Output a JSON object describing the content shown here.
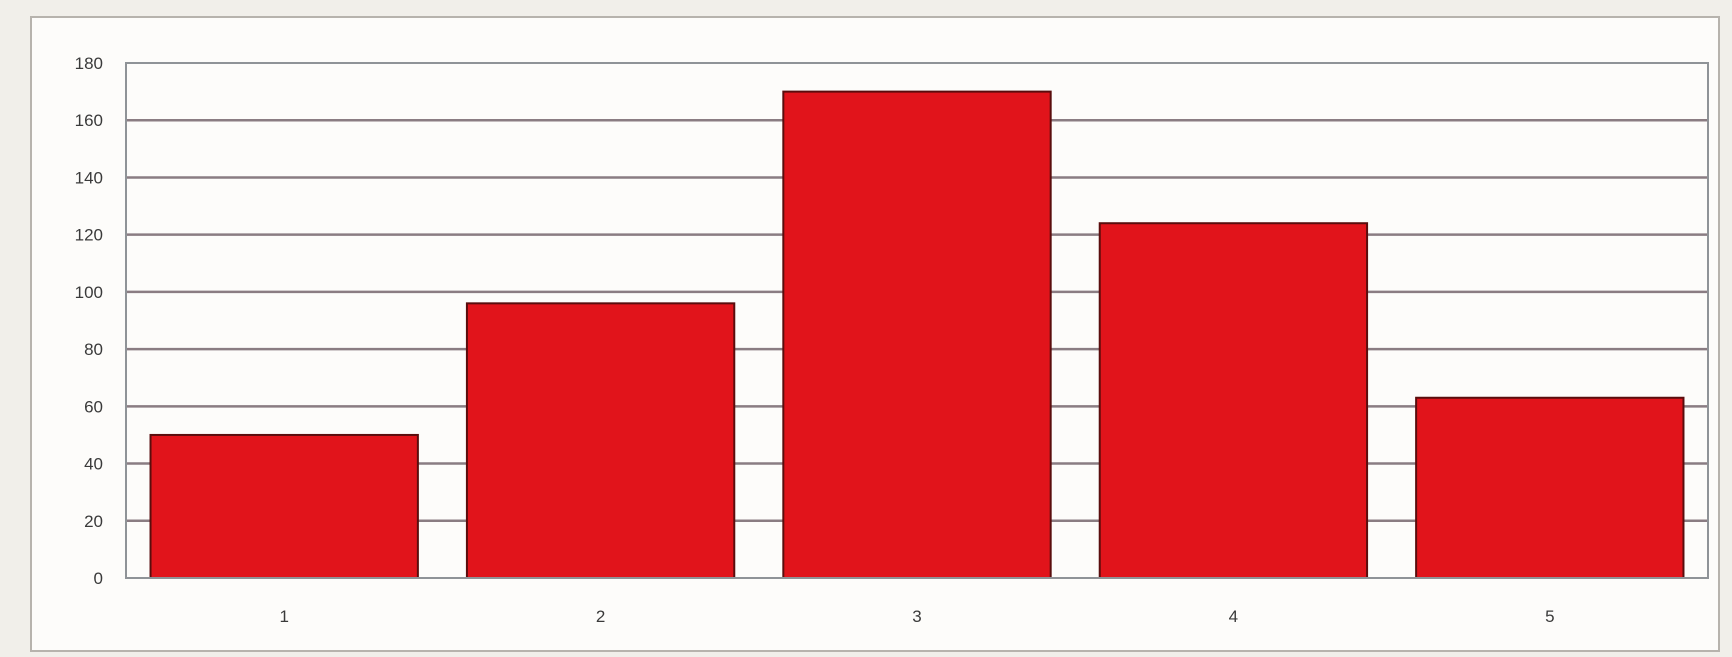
{
  "chart_data": {
    "type": "bar",
    "title": "",
    "xlabel": "",
    "ylabel": "",
    "categories": [
      "1",
      "2",
      "3",
      "4",
      "5"
    ],
    "values": [
      50,
      96,
      170,
      124,
      63
    ],
    "ylim": [
      0,
      180
    ],
    "yticks": [
      0,
      20,
      40,
      60,
      80,
      100,
      120,
      140,
      160,
      180
    ],
    "ytick_labels": [
      "0",
      "20",
      "40",
      "60",
      "80",
      "100",
      "120",
      "140",
      "160",
      "180"
    ],
    "grid": true,
    "legend": "none",
    "colors": {
      "bar": "#e1141b",
      "bar_edge": "#5a0d0d",
      "grid": "#8a7c82",
      "plot_border": "#8f9397",
      "background": "#fdfcfa"
    }
  }
}
